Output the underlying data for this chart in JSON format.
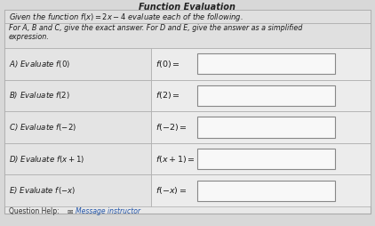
{
  "title": "Function Evaluation",
  "intro_line1": "Given the function $f(x) = 2x - 4$ evaluate each of the following.",
  "intro_line2": "For A, B and C, give the exact answer. For D and E, give the answer as a simplified",
  "intro_line3": "expression.",
  "rows": [
    {
      "label": "A) Evaluate $f(0)$",
      "formula": "$f(0) =$"
    },
    {
      "label": "B) Evaluate $f(2)$",
      "formula": "$f(2) =$"
    },
    {
      "label": "C) Evaluate $f(-2)$",
      "formula": "$f(-2) =$"
    },
    {
      "label": "D) Evaluate $f(x+1)$",
      "formula": "$f(x+1) =$"
    },
    {
      "label": "E) Evaluate $f(-x)$",
      "formula": "$f(-x) =$"
    }
  ],
  "bg_color": "#d8d8d8",
  "outer_bg": "#e8e8e8",
  "intro_bg": "#e0e0e0",
  "left_cell_bg": "#e4e4e4",
  "right_cell_bg": "#ececec",
  "border_color": "#aaaaaa",
  "text_color": "#1a1a1a",
  "input_box_color": "#f8f8f8",
  "footer_text": "Question Help:",
  "footer_icon": "✉",
  "footer_link": "Message instructor"
}
